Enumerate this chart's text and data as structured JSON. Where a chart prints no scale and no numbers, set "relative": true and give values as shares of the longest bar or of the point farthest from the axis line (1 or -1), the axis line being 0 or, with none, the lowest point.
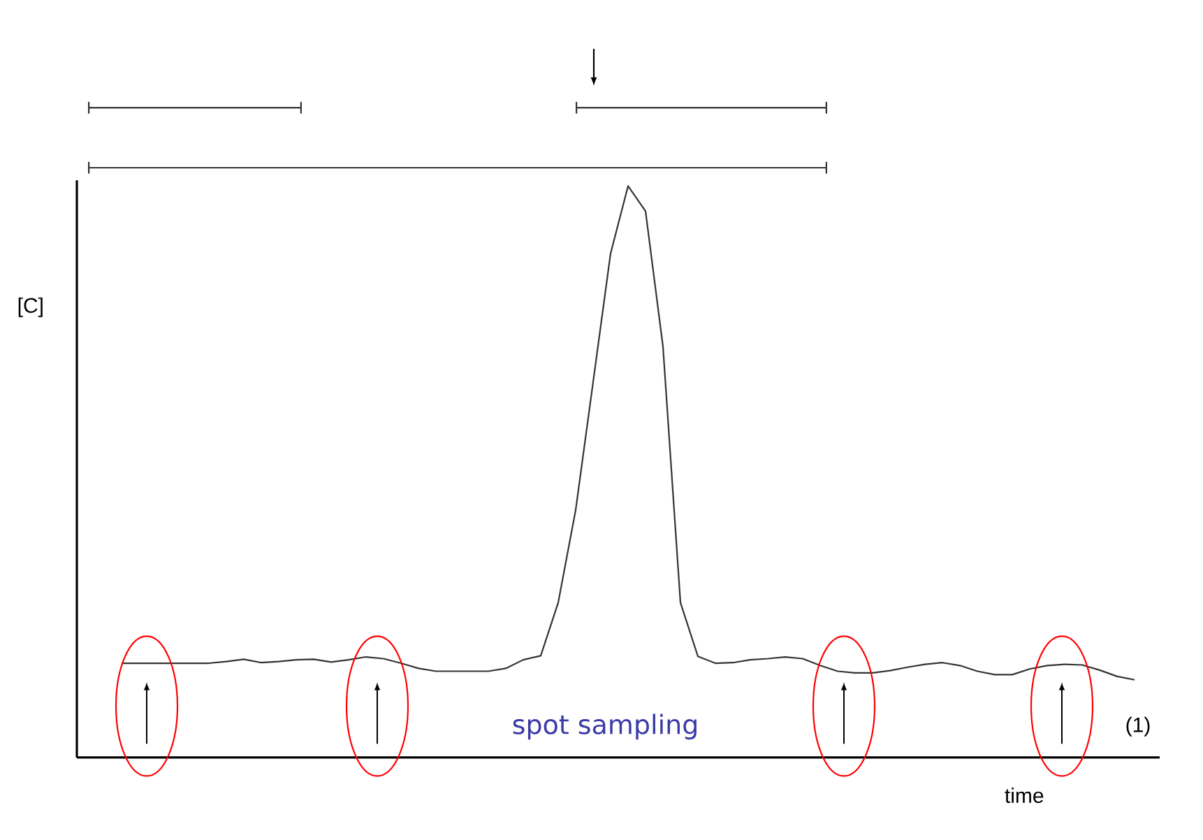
{
  "chart_data": {
    "type": "line",
    "relative": true,
    "xlabel": "time",
    "ylabel": "[C]",
    "color": "#333333",
    "annotations": [
      "spot sampling",
      "(1)"
    ],
    "categories": [
      null,
      null,
      null,
      null,
      null,
      null,
      null,
      null,
      null,
      null,
      null,
      null,
      null,
      null,
      null,
      null,
      null,
      null,
      null,
      null,
      null,
      null,
      null,
      null,
      null,
      null,
      null,
      null,
      null,
      null,
      null,
      null,
      null,
      null,
      null,
      null,
      null,
      null,
      null,
      null,
      null,
      null,
      null,
      null,
      null,
      null,
      null,
      null,
      null,
      null,
      null,
      null,
      null,
      null,
      null,
      null,
      null,
      null,
      null
    ],
    "values": [
      0.165,
      0.165,
      0.165,
      0.165,
      0.165,
      0.165,
      0.168,
      0.172,
      0.166,
      0.168,
      0.171,
      0.172,
      0.167,
      0.171,
      0.176,
      0.173,
      0.165,
      0.156,
      0.151,
      0.151,
      0.151,
      0.151,
      0.156,
      0.171,
      0.178,
      0.271,
      0.433,
      0.657,
      0.882,
      1.0,
      0.956,
      0.719,
      0.271,
      0.177,
      0.165,
      0.166,
      0.171,
      0.173,
      0.176,
      0.173,
      0.161,
      0.151,
      0.148,
      0.148,
      0.152,
      0.158,
      0.163,
      0.166,
      0.161,
      0.151,
      0.145,
      0.145,
      0.155,
      0.161,
      0.163,
      0.162,
      0.153,
      0.142,
      0.136
    ]
  }
}
